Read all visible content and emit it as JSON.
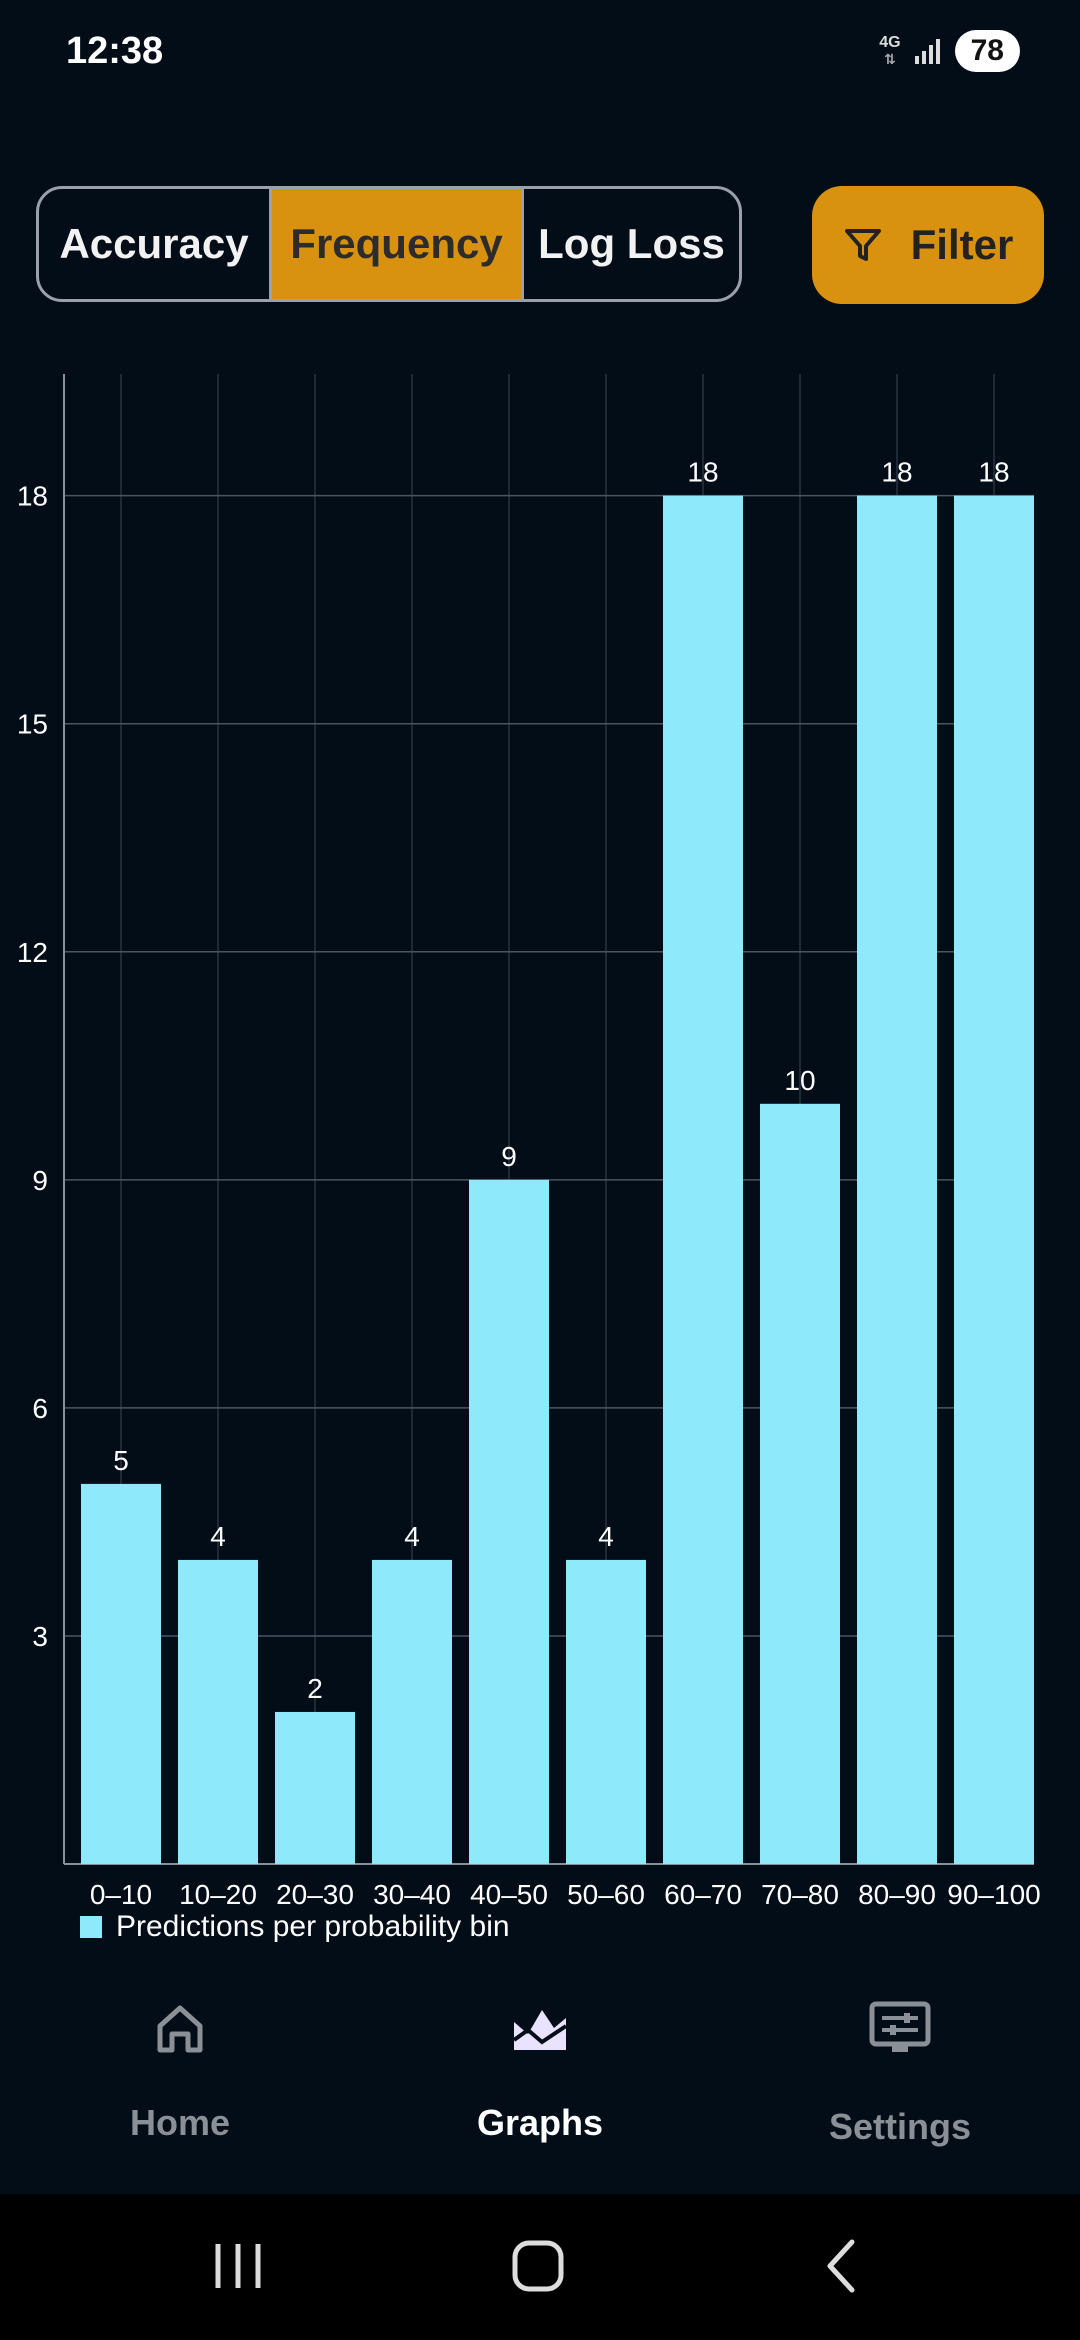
{
  "status": {
    "time": "12:38",
    "network": "4G",
    "battery": "78"
  },
  "segments": [
    {
      "label": "Accuracy",
      "active": false
    },
    {
      "label": "Frequency",
      "active": true
    },
    {
      "label": "Log Loss",
      "active": false
    }
  ],
  "filter": {
    "label": "Filter",
    "icon": "filter-icon"
  },
  "chart_data": {
    "type": "bar",
    "categories": [
      "0–10",
      "10–20",
      "20–30",
      "30–40",
      "40–50",
      "50–60",
      "60–70",
      "70–80",
      "80–90",
      "90–100"
    ],
    "values": [
      5,
      4,
      2,
      4,
      9,
      4,
      18,
      10,
      18,
      18
    ],
    "yticks": [
      3,
      6,
      9,
      12,
      15,
      18
    ],
    "ylim": [
      0,
      19.6
    ],
    "grid": true,
    "bar_color": "#8ee9fb",
    "series": [
      {
        "name": "Predictions per probability bin",
        "values": [
          5,
          4,
          2,
          4,
          9,
          4,
          18,
          10,
          18,
          18
        ]
      }
    ],
    "legend": "bottom-left"
  },
  "legend_label": "Predictions per probability bin",
  "nav": {
    "home": {
      "label": "Home",
      "icon": "home-icon"
    },
    "graphs": {
      "label": "Graphs",
      "icon": "graph-icon"
    },
    "settings": {
      "label": "Settings",
      "icon": "settings-icon"
    }
  },
  "colors": {
    "background": "#030d18",
    "accent": "#d8920f",
    "bar": "#8ee9fb"
  }
}
